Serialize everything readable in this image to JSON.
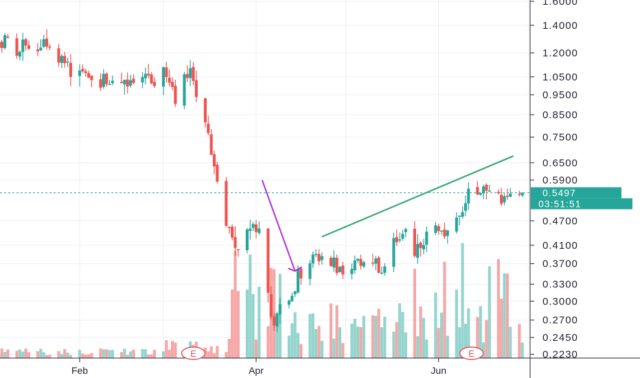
{
  "chart_data": {
    "type": "candlestick",
    "y_scale": "log",
    "ylim": [
      0.215,
      1.62
    ],
    "y_ticks": [
      "1.6000",
      "1.4000",
      "1.2000",
      "1.0500",
      "0.9500",
      "0.8500",
      "0.7500",
      "0.6500",
      "0.5900",
      "0.4700",
      "0.4100",
      "0.3700",
      "0.3300",
      "0.3000",
      "0.2700",
      "0.2450",
      "0.2230"
    ],
    "y_tick_values": [
      1.6,
      1.4,
      1.2,
      1.05,
      0.95,
      0.85,
      0.75,
      0.65,
      0.59,
      0.47,
      0.41,
      0.37,
      0.33,
      0.3,
      0.27,
      0.245,
      0.223
    ],
    "x_ticks": [
      {
        "label": "Feb",
        "date": "Feb 1"
      },
      {
        "label": "Apr",
        "date": "Apr 1"
      },
      {
        "label": "Jun",
        "date": "Jun 1"
      }
    ],
    "current_price": "0.5497",
    "countdown": "03:51:51",
    "earnings_marker": "E",
    "earnings_dates": [
      "Mar 11",
      "Jun 12"
    ],
    "grid": true,
    "colors": {
      "up": "#26a69a",
      "down": "#ef5350",
      "up_volume": "#94d4cd",
      "down_volume": "#f5a6a6",
      "trendline": "#3aa876",
      "arrow": "#b02fd6",
      "grid": "#eceff3",
      "price_line": "#26a69a"
    },
    "trendline": {
      "start": [
        "Apr 23",
        0.43
      ],
      "end": [
        "Jun 26",
        0.675
      ]
    },
    "arrow": {
      "start": [
        "Apr 3",
        0.59
      ],
      "end": [
        "Apr 14",
        0.355
      ]
    }
  }
}
